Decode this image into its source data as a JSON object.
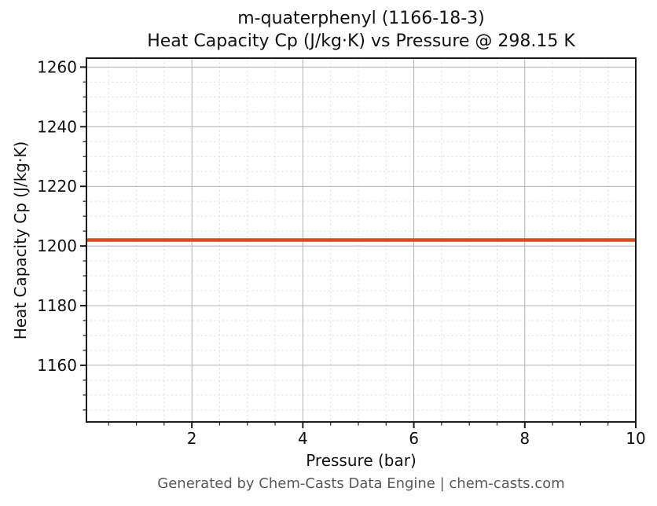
{
  "chart_data": {
    "type": "line",
    "title": "m-quaterphenyl (1166-18-3)",
    "subtitle": "Heat Capacity Cp (J/kg·K) vs Pressure @ 298.15 K",
    "xlabel": "Pressure (bar)",
    "ylabel": "Heat Capacity Cp (J/kg·K)",
    "footer": "Generated by Chem-Casts Data Engine | chem-casts.com",
    "xlim": [
      0.1,
      10
    ],
    "ylim": [
      1141,
      1263
    ],
    "xticks": [
      2,
      4,
      6,
      8,
      10
    ],
    "yticks": [
      1160,
      1180,
      1200,
      1220,
      1240,
      1260
    ],
    "x_minor_step": 0.5,
    "y_minor_step": 5,
    "grid": {
      "major": true,
      "minor": true
    },
    "legend": false,
    "series": [
      {
        "x": [
          0.1,
          10
        ],
        "y": [
          1202,
          1202
        ],
        "color": "#d14f21",
        "linewidth": 4.5
      }
    ],
    "colors": {
      "line": "#d14f21",
      "major_grid": "#b0b0b0",
      "minor_grid": "#dcdcdc",
      "spine": "#1c1c1c",
      "text": "#111111",
      "footer_text": "#595959"
    }
  }
}
